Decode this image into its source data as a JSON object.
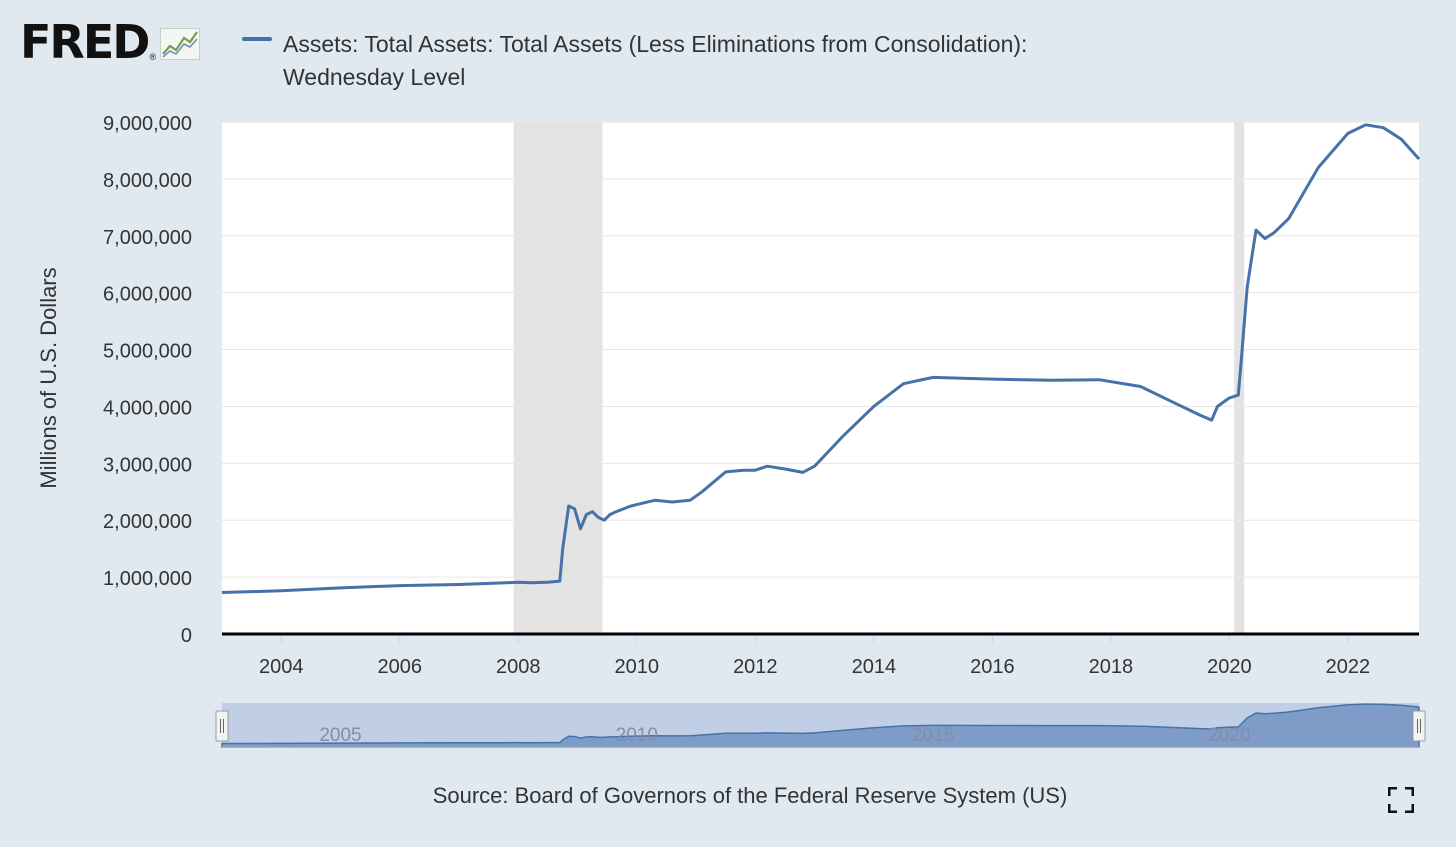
{
  "brand": {
    "logo_text": "FRED",
    "logo_reg": "®",
    "logo_icon": "trend-chart-icon"
  },
  "source_text": "Source: Board of Governors of the Federal Reserve System (US)",
  "controls": {
    "fullscreen_icon": "fullscreen-icon"
  },
  "colors": {
    "series": "#4572a7",
    "recession": "#e3e3e3",
    "background": "#e1e9f0",
    "plot_background": "#ffffff",
    "navigator_fill": "#7f9cc9"
  },
  "chart_data": {
    "type": "line",
    "title": "Assets: Total Assets: Total Assets (Less Eliminations from Consolidation): Wednesday Level",
    "title_lines": [
      "Assets: Total Assets: Total Assets (Less Eliminations from Consolidation):",
      "Wednesday Level"
    ],
    "xlabel": "",
    "ylabel": "Millions of U.S. Dollars",
    "xlim": [
      2003.0,
      2023.2
    ],
    "ylim": [
      0,
      9000000
    ],
    "x_ticks": [
      2004,
      2006,
      2008,
      2010,
      2012,
      2014,
      2016,
      2018,
      2020,
      2022
    ],
    "y_ticks": [
      0,
      1000000,
      2000000,
      3000000,
      4000000,
      5000000,
      6000000,
      7000000,
      8000000,
      9000000
    ],
    "y_tick_labels": [
      "0",
      "1,000,000",
      "2,000,000",
      "3,000,000",
      "4,000,000",
      "5,000,000",
      "6,000,000",
      "7,000,000",
      "8,000,000",
      "9,000,000"
    ],
    "grid": true,
    "legend": "top-left",
    "recessions": [
      [
        2007.92,
        2009.42
      ],
      [
        2020.08,
        2020.25
      ]
    ],
    "series": [
      {
        "name": "Assets: Total Assets: Total Assets (Less Eliminations from Consolidation): Wednesday Level",
        "x": [
          2003.0,
          2004.0,
          2005.0,
          2006.0,
          2007.0,
          2007.8,
          2008.0,
          2008.2,
          2008.5,
          2008.7,
          2008.75,
          2008.85,
          2008.95,
          2009.05,
          2009.15,
          2009.25,
          2009.35,
          2009.45,
          2009.55,
          2009.65,
          2009.9,
          2010.3,
          2010.6,
          2010.9,
          2011.1,
          2011.5,
          2011.8,
          2012.0,
          2012.2,
          2012.5,
          2012.8,
          2013.0,
          2013.5,
          2014.0,
          2014.5,
          2015.0,
          2016.0,
          2017.0,
          2017.8,
          2018.5,
          2019.0,
          2019.5,
          2019.7,
          2019.8,
          2020.0,
          2020.15,
          2020.2,
          2020.3,
          2020.45,
          2020.6,
          2020.75,
          2021.0,
          2021.5,
          2022.0,
          2022.3,
          2022.6,
          2022.9,
          2023.2
        ],
        "y": [
          730000,
          760000,
          810000,
          850000,
          870000,
          900000,
          910000,
          900000,
          910000,
          930000,
          1500000,
          2250000,
          2200000,
          1850000,
          2100000,
          2150000,
          2050000,
          2000000,
          2100000,
          2150000,
          2250000,
          2350000,
          2320000,
          2350000,
          2500000,
          2850000,
          2880000,
          2880000,
          2950000,
          2900000,
          2840000,
          2950000,
          3500000,
          4000000,
          4400000,
          4510000,
          4480000,
          4460000,
          4470000,
          4350000,
          4100000,
          3850000,
          3760000,
          4000000,
          4150000,
          4200000,
          4800000,
          6100000,
          7100000,
          6950000,
          7050000,
          7300000,
          8200000,
          8800000,
          8950000,
          8900000,
          8700000,
          8350000
        ]
      }
    ],
    "navigator": {
      "x_ticks": [
        2005,
        2010,
        2015,
        2020
      ]
    }
  }
}
